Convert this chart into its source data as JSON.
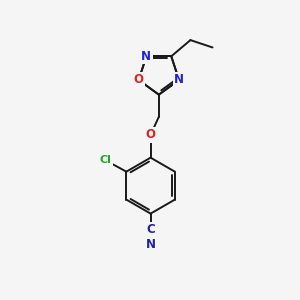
{
  "background_color": "#f5f5f5",
  "bond_color": "#1a1a1a",
  "bond_width": 1.4,
  "atom_colors": {
    "N": "#2222dd",
    "O": "#dd2222",
    "Cl": "#22aa22",
    "C_nitrile": "#2222aa",
    "N_nitrile": "#2222aa"
  },
  "fig_size": [
    3.0,
    3.0
  ],
  "dpi": 100,
  "xlim": [
    0,
    10
  ],
  "ylim": [
    0,
    10
  ],
  "font_size": 8.5
}
